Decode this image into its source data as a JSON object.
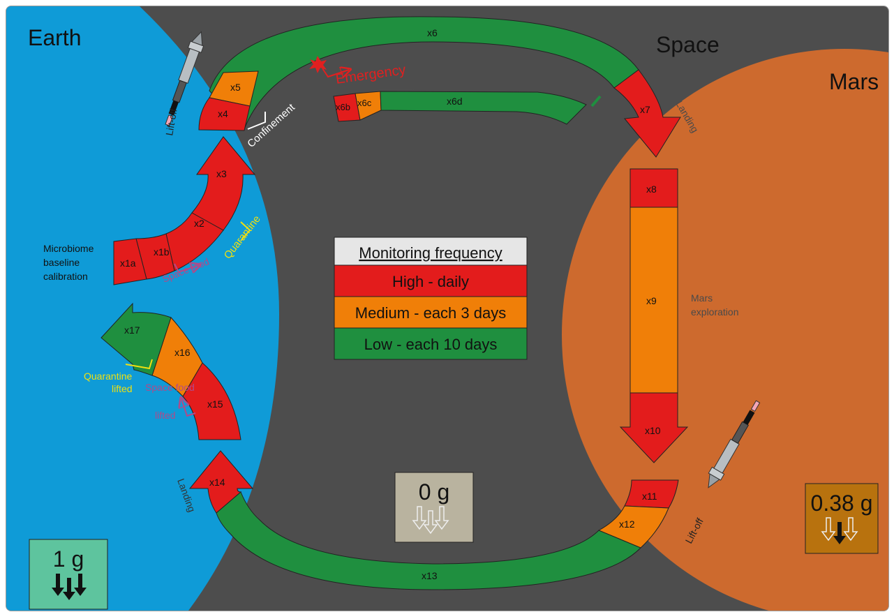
{
  "regions": {
    "earth": "Earth",
    "space": "Space",
    "mars": "Mars"
  },
  "colors": {
    "space": "#4d4d4d",
    "earth": "#0f9bd7",
    "mars": "#cd6a2e",
    "high": "#e31c1c",
    "medium": "#f07f08",
    "low": "#1f8f3f",
    "quarantine": "#f0e010",
    "space_food": "#b04a8a",
    "emergency": "#e02020"
  },
  "legend": {
    "title": "Monitoring frequency",
    "items": [
      {
        "label": "High - daily",
        "color": "#e31c1c"
      },
      {
        "label": "Medium - each 3 days",
        "color": "#f07f08"
      },
      {
        "label": "Low - each 10 days",
        "color": "#1f8f3f"
      }
    ]
  },
  "segments": {
    "x1a": "x1a",
    "x1b": "x1b",
    "x2": "x2",
    "x3": "x3",
    "x4": "x4",
    "x5": "x5",
    "x6": "x6",
    "x6b": "x6b",
    "x6c": "x6c",
    "x6d": "x6d",
    "x7": "x7",
    "x8": "x8",
    "x9": "x9",
    "x10": "x10",
    "x11": "x11",
    "x12": "x12",
    "x13": "x13",
    "x14": "x14",
    "x15": "x15",
    "x16": "x16",
    "x17": "x17"
  },
  "labels": {
    "microbiome": [
      "Microbiome",
      "baseline",
      "calibration"
    ],
    "quarantine": "Quarantine",
    "space_food": "Space food",
    "quarantine_lifted": [
      "Quarantine",
      "lifted"
    ],
    "space_food_lifted": [
      "Space food",
      "lifted"
    ],
    "confinement": "Confinement",
    "emergency": "Emergency",
    "liftoff_earth": "Lift-off",
    "landing_mars": "Landing",
    "mars_exploration": [
      "Mars",
      "exploration"
    ],
    "liftoff_mars": "Lift-off",
    "landing_earth": "Landing"
  },
  "gravity": {
    "earth": "1 g",
    "space": "0 g",
    "mars": "0.38 g"
  }
}
